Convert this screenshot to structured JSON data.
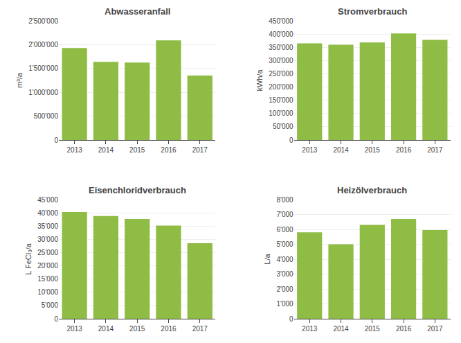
{
  "chart_data": [
    {
      "type": "bar",
      "title": "Abwasseranfall",
      "y_label": "m³/a",
      "categories": [
        "2013",
        "2014",
        "2015",
        "2016",
        "2017"
      ],
      "values": [
        1930000,
        1640000,
        1625000,
        2090000,
        1350000
      ],
      "color": "#8fbc45",
      "ylim": [
        0,
        2500000
      ],
      "yticks": [
        0,
        {
          "value": 500000,
          "label": "500'000"
        },
        {
          "value": 1000000,
          "label": "1'000'000"
        },
        {
          "value": 1500000,
          "label": "1'500'000"
        },
        {
          "value": 2000000,
          "label": "2'000'000"
        },
        {
          "value": 2500000,
          "label": "2'500'000"
        }
      ],
      "grid": true
    },
    {
      "type": "bar",
      "title": "Stromverbrauch",
      "y_label": "kWh/a",
      "categories": [
        "2013",
        "2014",
        "2015",
        "2016",
        "2017"
      ],
      "values": [
        365000,
        360000,
        368000,
        402000,
        378000
      ],
      "color": "#8fbc45",
      "ylim": [
        0,
        450000
      ],
      "yticks": [
        0,
        {
          "value": 50000,
          "label": "50'000"
        },
        {
          "value": 100000,
          "label": "100'000"
        },
        {
          "value": 150000,
          "label": "150'000"
        },
        {
          "value": 200000,
          "label": "200'000"
        },
        {
          "value": 250000,
          "label": "250'000"
        },
        {
          "value": 300000,
          "label": "300'000"
        },
        {
          "value": 350000,
          "label": "350'000"
        },
        {
          "value": 400000,
          "label": "400'000"
        },
        {
          "value": 450000,
          "label": "450'000"
        }
      ],
      "grid": true
    },
    {
      "type": "bar",
      "title": "Eisenchloridverbrauch",
      "y_label": "L FeCl₃/a",
      "categories": [
        "2013",
        "2014",
        "2015",
        "2016",
        "2017"
      ],
      "values": [
        40300,
        38800,
        37700,
        35200,
        28500
      ],
      "color": "#8fbc45",
      "ylim": [
        0,
        45000
      ],
      "yticks": [
        0,
        {
          "value": 5000,
          "label": "5'000"
        },
        {
          "value": 10000,
          "label": "10'000"
        },
        {
          "value": 15000,
          "label": "15'000"
        },
        {
          "value": 20000,
          "label": "20'000"
        },
        {
          "value": 25000,
          "label": "25'000"
        },
        {
          "value": 30000,
          "label": "30'000"
        },
        {
          "value": 35000,
          "label": "35'000"
        },
        {
          "value": 40000,
          "label": "40'000"
        },
        {
          "value": 45000,
          "label": "45'000"
        }
      ],
      "grid": true
    },
    {
      "type": "bar",
      "title": "Heizölverbrauch",
      "y_label": "L/a",
      "categories": [
        "2013",
        "2014",
        "2015",
        "2016",
        "2017"
      ],
      "values": [
        5800,
        5000,
        6300,
        6700,
        5950
      ],
      "color": "#8fbc45",
      "ylim": [
        0,
        8000
      ],
      "yticks": [
        0,
        {
          "value": 1000,
          "label": "1'000"
        },
        {
          "value": 2000,
          "label": "2'000"
        },
        {
          "value": 3000,
          "label": "3'000"
        },
        {
          "value": 4000,
          "label": "4'000"
        },
        {
          "value": 5000,
          "label": "5'000"
        },
        {
          "value": 6000,
          "label": "6'000"
        },
        {
          "value": 7000,
          "label": "7'000"
        },
        {
          "value": 8000,
          "label": "8'000"
        }
      ],
      "grid": true
    }
  ]
}
